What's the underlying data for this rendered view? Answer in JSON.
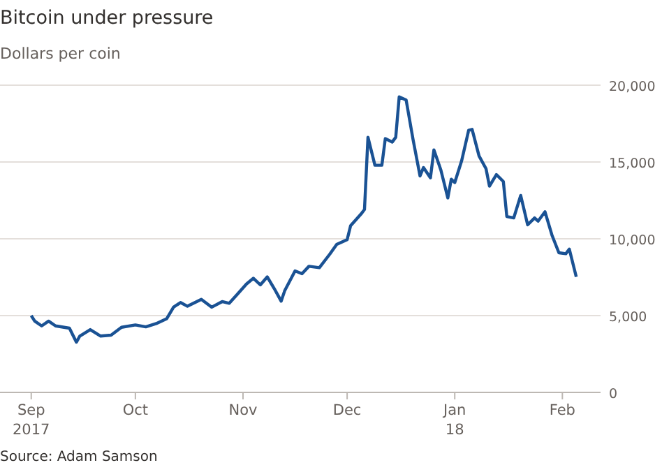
{
  "chart_data": {
    "type": "line",
    "title": "Bitcoin under pressure",
    "subtitle": "Dollars per coin",
    "annotations": [
      "Source: Adam Samson"
    ],
    "x": [
      "2017-09-01",
      "2017-09-02",
      "2017-09-04",
      "2017-09-06",
      "2017-09-08",
      "2017-09-12",
      "2017-09-14",
      "2017-09-15",
      "2017-09-18",
      "2017-09-21",
      "2017-09-24",
      "2017-09-27",
      "2017-10-01",
      "2017-10-04",
      "2017-10-07",
      "2017-10-10",
      "2017-10-12",
      "2017-10-14",
      "2017-10-16",
      "2017-10-20",
      "2017-10-23",
      "2017-10-26",
      "2017-10-28",
      "2017-10-30",
      "2017-11-02",
      "2017-11-04",
      "2017-11-06",
      "2017-11-08",
      "2017-11-10",
      "2017-11-12",
      "2017-11-13",
      "2017-11-16",
      "2017-11-18",
      "2017-11-20",
      "2017-11-23",
      "2017-11-26",
      "2017-11-28",
      "2017-12-01",
      "2017-12-02",
      "2017-12-05",
      "2017-12-06",
      "2017-12-07",
      "2017-12-09",
      "2017-12-11",
      "2017-12-12",
      "2017-12-14",
      "2017-12-15",
      "2017-12-16",
      "2017-12-18",
      "2017-12-20",
      "2017-12-22",
      "2017-12-23",
      "2017-12-25",
      "2017-12-26",
      "2017-12-28",
      "2017-12-30",
      "2017-12-31",
      "2018-01-01",
      "2018-01-03",
      "2018-01-05",
      "2018-01-06",
      "2018-01-08",
      "2018-01-10",
      "2018-01-11",
      "2018-01-13",
      "2018-01-15",
      "2018-01-16",
      "2018-01-18",
      "2018-01-20",
      "2018-01-22",
      "2018-01-24",
      "2018-01-25",
      "2018-01-27",
      "2018-01-29",
      "2018-01-31",
      "2018-02-02",
      "2018-02-03",
      "2018-02-05"
    ],
    "series": [
      {
        "color": "#1a5294",
        "values": [
          5000,
          4640,
          4330,
          4640,
          4330,
          4180,
          3270,
          3670,
          4090,
          3670,
          3730,
          4240,
          4390,
          4270,
          4480,
          4790,
          5550,
          5850,
          5610,
          6060,
          5550,
          5910,
          5800,
          6300,
          7060,
          7430,
          7000,
          7520,
          6760,
          5940,
          6610,
          7910,
          7730,
          8210,
          8120,
          9000,
          9640,
          9940,
          10850,
          11610,
          11910,
          16610,
          14790,
          14790,
          16520,
          16300,
          16610,
          19240,
          19030,
          16450,
          14090,
          14640,
          13970,
          15790,
          14480,
          12660,
          13880,
          13660,
          15090,
          17060,
          17120,
          15390,
          14570,
          13430,
          14180,
          13730,
          11450,
          11360,
          12820,
          10910,
          11360,
          11150,
          11760,
          10240,
          9090,
          9030,
          9330,
          7520
        ]
      }
    ],
    "xlim": [
      "2017-08-23",
      "2018-02-12"
    ],
    "xticks": [
      {
        "value": "2017-09-01",
        "label": "Sep\n2017"
      },
      {
        "value": "2017-10-01",
        "label": "Oct"
      },
      {
        "value": "2017-11-01",
        "label": "Nov"
      },
      {
        "value": "2017-12-01",
        "label": "Dec"
      },
      {
        "value": "2018-01-01",
        "label": "Jan\n18"
      },
      {
        "value": "2018-02-01",
        "label": "Feb"
      }
    ],
    "ylim": [
      0,
      20000
    ],
    "yticks": [
      {
        "value": 0,
        "label": "0"
      },
      {
        "value": 5000,
        "label": "5,000"
      },
      {
        "value": 10000,
        "label": "10,000"
      },
      {
        "value": 15000,
        "label": "15,000"
      },
      {
        "value": 20000,
        "label": "20,000"
      }
    ],
    "grid": "y",
    "line_style": "solid",
    "marker": "none"
  }
}
